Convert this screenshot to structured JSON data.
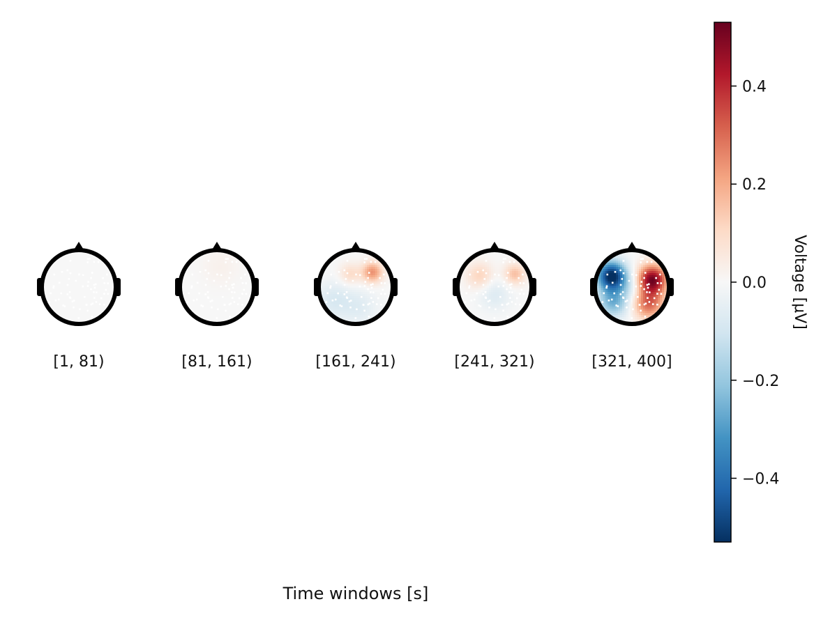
{
  "chart_data": {
    "type": "heatmap",
    "subtype": "topoplot-series",
    "xlabel": "Time windows [s]",
    "windows": [
      {
        "label": "[1, 81)",
        "blobs": []
      },
      {
        "label": "[81, 161)",
        "blobs": [
          {
            "u": 0.1,
            "v": 0.55,
            "amp": 0.025,
            "s": 0.35
          }
        ]
      },
      {
        "label": "[161, 241)",
        "blobs": [
          {
            "u": 0.45,
            "v": 0.4,
            "amp": 0.24,
            "s": 0.2
          },
          {
            "u": -0.15,
            "v": 0.35,
            "amp": 0.1,
            "s": 0.2
          },
          {
            "u": -0.6,
            "v": -0.35,
            "amp": -0.08,
            "s": 0.35
          },
          {
            "u": 0.1,
            "v": -0.55,
            "amp": -0.06,
            "s": 0.35
          }
        ]
      },
      {
        "label": "[241, 321)",
        "blobs": [
          {
            "u": 0.55,
            "v": 0.35,
            "amp": 0.16,
            "s": 0.2
          },
          {
            "u": -0.4,
            "v": 0.3,
            "amp": 0.12,
            "s": 0.25
          },
          {
            "u": 0.0,
            "v": -0.2,
            "amp": -0.07,
            "s": 0.3
          }
        ]
      },
      {
        "label": "[321, 400]",
        "blobs": [
          {
            "u": -0.55,
            "v": 0.3,
            "amp": -0.55,
            "s": 0.28
          },
          {
            "u": -0.5,
            "v": -0.4,
            "amp": -0.25,
            "s": 0.3
          },
          {
            "u": 0.55,
            "v": 0.2,
            "amp": 0.5,
            "s": 0.28
          },
          {
            "u": 0.45,
            "v": -0.45,
            "amp": 0.3,
            "s": 0.3
          },
          {
            "u": 0.0,
            "v": 0.0,
            "amp": -0.08,
            "s": 0.25
          }
        ]
      }
    ],
    "colorbar": {
      "label": "Voltage [μV]",
      "vlim": [
        -0.53,
        0.53
      ],
      "ticks": [
        -0.4,
        -0.2,
        0.0,
        0.2,
        0.4
      ],
      "tick_labels": [
        "−0.4",
        "−0.2",
        "0.0",
        "0.2",
        "0.4"
      ],
      "colormap": "RdBu_r",
      "colormap_stops": [
        "#053061",
        "#2166ac",
        "#4393c3",
        "#92c5de",
        "#d1e5f0",
        "#f7f7f7",
        "#fddbc7",
        "#f4a582",
        "#d6604d",
        "#b2182b",
        "#67001f"
      ]
    },
    "grid": false,
    "legend": "none"
  }
}
